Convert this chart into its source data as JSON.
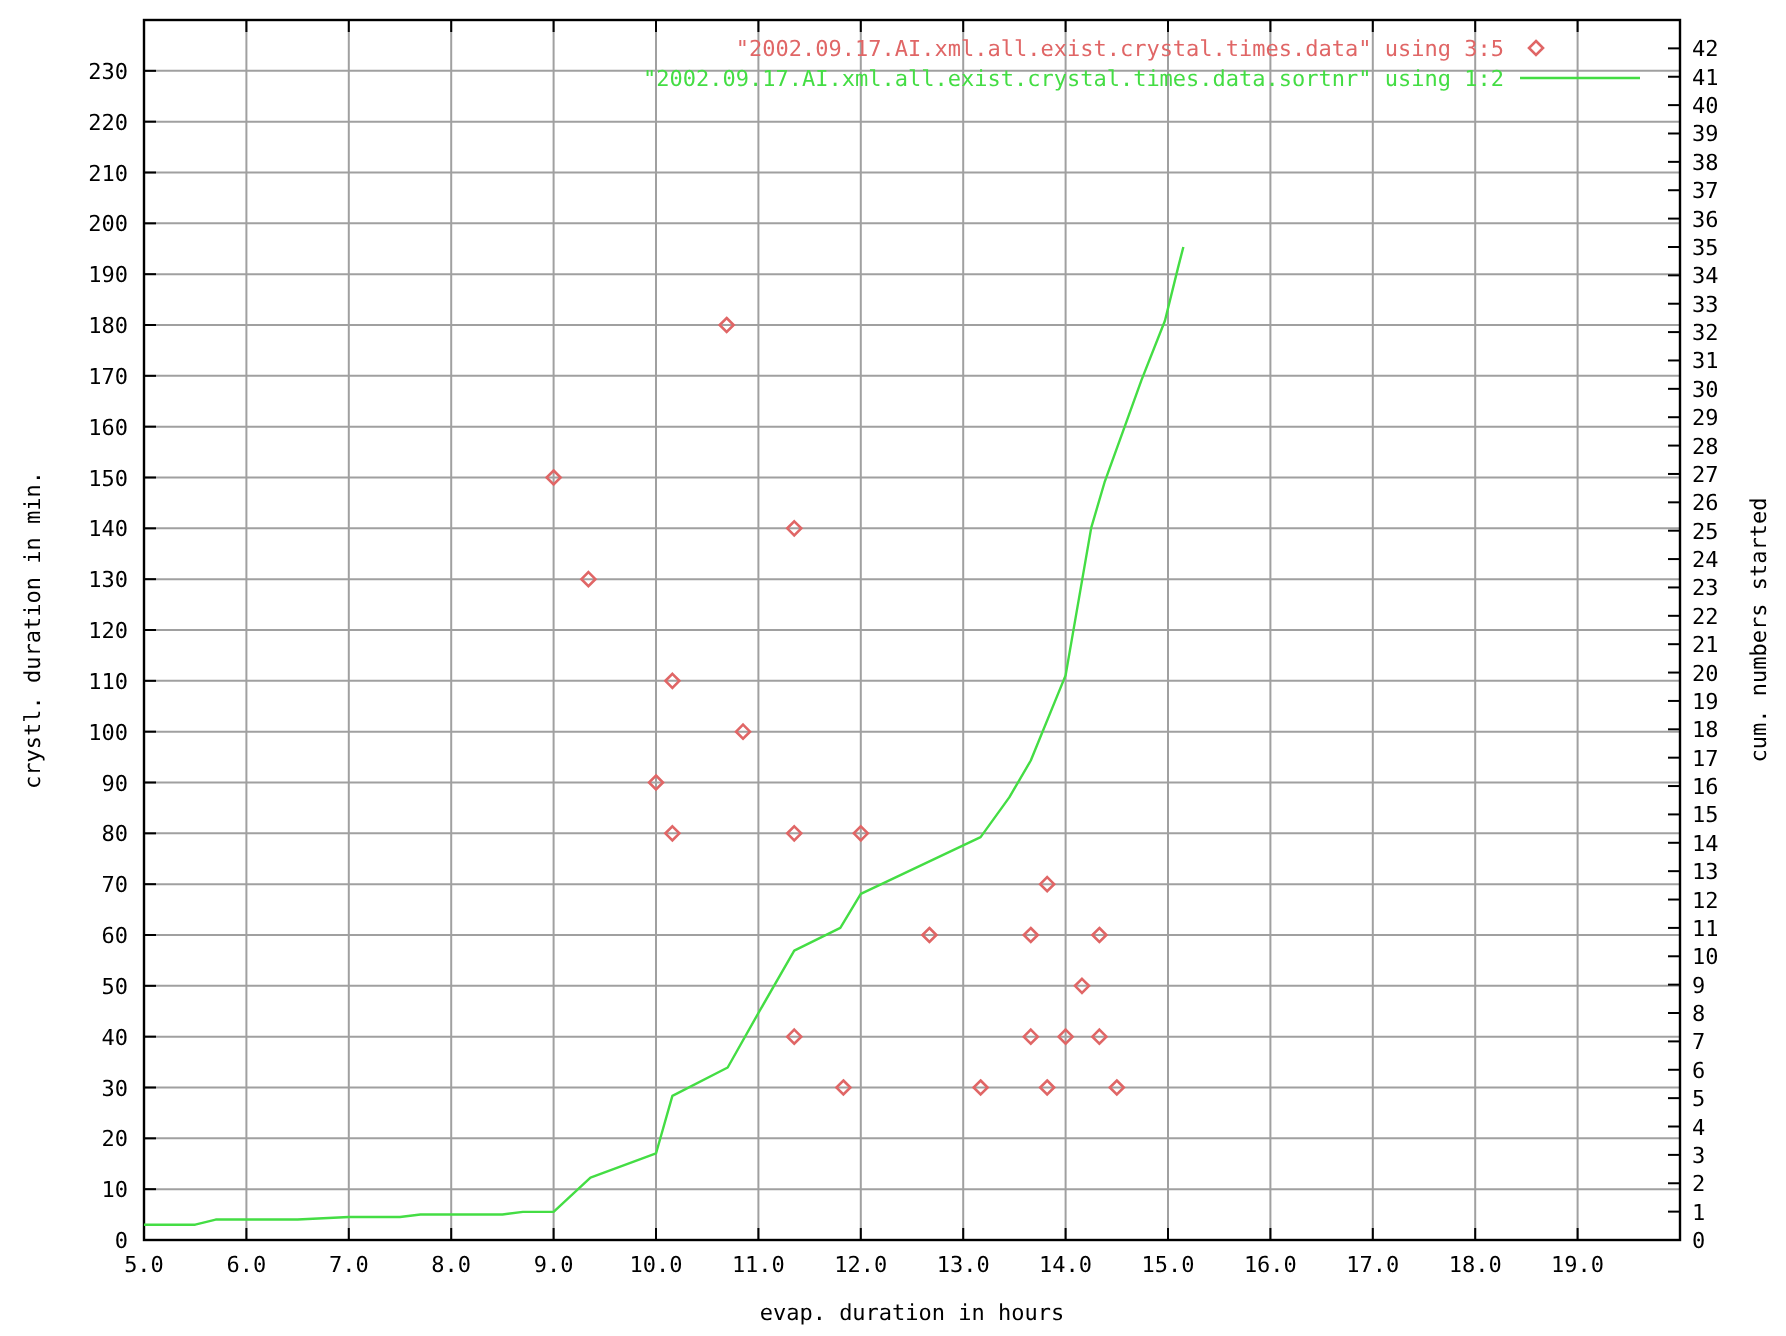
{
  "chart_data": {
    "type": "scatter",
    "xlabel": "evap. duration in hours",
    "ylabel": "crystl. duration in min.",
    "y2label": "cum. numbers started",
    "xlim": [
      5,
      20
    ],
    "xticks": [
      {
        "value": 5,
        "label": "5.0"
      },
      {
        "value": 6,
        "label": "6.0"
      },
      {
        "value": 7,
        "label": "7.0"
      },
      {
        "value": 8,
        "label": "8.0"
      },
      {
        "value": 9,
        "label": "9.0"
      },
      {
        "value": 10,
        "label": "10.0"
      },
      {
        "value": 11,
        "label": "11.0"
      },
      {
        "value": 12,
        "label": "12.0"
      },
      {
        "value": 13,
        "label": "13.0"
      },
      {
        "value": 14,
        "label": "14.0"
      },
      {
        "value": 15,
        "label": "15.0"
      },
      {
        "value": 16,
        "label": "16.0"
      },
      {
        "value": 17,
        "label": "17.0"
      },
      {
        "value": 18,
        "label": "18.0"
      },
      {
        "value": 19,
        "label": "19.0"
      }
    ],
    "ylim": [
      0,
      240
    ],
    "yticks": [
      0,
      10,
      20,
      30,
      40,
      50,
      60,
      70,
      80,
      90,
      100,
      110,
      120,
      130,
      140,
      150,
      160,
      170,
      180,
      190,
      200,
      210,
      220,
      230
    ],
    "y2lim": [
      0,
      43
    ],
    "y2ticks": [
      0,
      1,
      2,
      3,
      4,
      5,
      6,
      7,
      8,
      9,
      10,
      11,
      12,
      13,
      14,
      15,
      16,
      17,
      18,
      19,
      20,
      21,
      22,
      23,
      24,
      25,
      26,
      27,
      28,
      29,
      30,
      31,
      32,
      33,
      34,
      35,
      36,
      37,
      38,
      39,
      40,
      41,
      42
    ],
    "grid": true,
    "legend": "top right",
    "series": [
      {
        "name": "\"2002.09.17.AI.xml.all.exist.crystal.times.data\" using 3:5",
        "type": "scatter",
        "marker": "diamond",
        "color": "#e06666",
        "x": [
          10.69,
          9.0,
          11.35,
          9.34,
          10.16,
          10.85,
          10.0,
          10.16,
          11.35,
          12.0,
          13.82,
          12.67,
          13.66,
          14.33,
          14.16,
          11.35,
          13.66,
          14.0,
          14.33,
          11.83,
          13.17,
          13.82,
          14.5
        ],
        "values": [
          180,
          150,
          140,
          130,
          110,
          100,
          90,
          80,
          80,
          80,
          70,
          60,
          60,
          60,
          50,
          40,
          40,
          40,
          40,
          30,
          30,
          30,
          30
        ]
      },
      {
        "name": "\"2002.09.17.AI.xml.all.exist.crystal.times.data.sortnr\" using 1:2",
        "type": "line",
        "axis": "y2",
        "marker": "none",
        "line_style": "solid",
        "color": "#44dd44",
        "x": [
          5.0,
          5.5,
          5.7,
          6.5,
          7.0,
          7.5,
          7.7,
          8.5,
          8.7,
          9.0,
          9.36,
          10.0,
          10.16,
          10.7,
          11.0,
          11.35,
          11.8,
          12.0,
          13.17,
          13.45,
          13.66,
          14.0,
          14.25,
          14.38,
          14.6,
          14.74,
          14.97,
          15.1,
          15.15
        ],
        "values": [
          0.54,
          0.54,
          0.72,
          0.72,
          0.81,
          0.81,
          0.9,
          0.9,
          0.99,
          0.99,
          2.2,
          3.05,
          5.08,
          6.08,
          8.0,
          10.2,
          11.0,
          12.2,
          14.2,
          15.6,
          16.9,
          19.9,
          25.1,
          26.7,
          28.9,
          30.3,
          32.4,
          34.3,
          35.0
        ]
      }
    ]
  }
}
